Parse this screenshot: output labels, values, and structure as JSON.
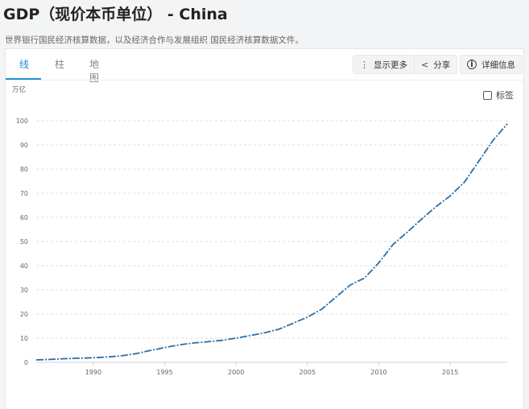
{
  "header": {
    "title": "GDP（现价本币单位） - China",
    "subtitle": "世界银行国民经济核算数据，以及经济合作与发展组织 国民经济核算数据文件。"
  },
  "tabs": [
    {
      "label": "线",
      "active": true
    },
    {
      "label": "柱",
      "active": false
    },
    {
      "label": "地图",
      "active": false
    }
  ],
  "toolbar": {
    "more_label": "显示更多",
    "share_label": "分享",
    "details_label": "详细信息"
  },
  "label_toggle": {
    "label": "标签",
    "checked": false
  },
  "colors": {
    "line": "#2a6fa7",
    "accent": "#1f8fd3"
  },
  "chart_data": {
    "type": "line",
    "title": "",
    "xlabel": "",
    "ylabel": "万亿",
    "xlim": [
      1986,
      2019
    ],
    "ylim": [
      0,
      100
    ],
    "yticks": [
      0,
      10,
      20,
      30,
      40,
      50,
      60,
      70,
      80,
      90,
      100
    ],
    "xticks": [
      1990,
      1995,
      2000,
      2005,
      2010,
      2015
    ],
    "grid": true,
    "series": [
      {
        "x": [
          1986,
          1987,
          1988,
          1989,
          1990,
          1991,
          1992,
          1993,
          1994,
          1995,
          1996,
          1997,
          1998,
          1999,
          2000,
          2001,
          2002,
          2003,
          2004,
          2005,
          2006,
          2007,
          2008,
          2009,
          2010,
          2011,
          2012,
          2013,
          2014,
          2015,
          2016,
          2017,
          2018,
          2019
        ],
        "y": [
          1.0,
          1.2,
          1.5,
          1.7,
          1.9,
          2.2,
          2.7,
          3.6,
          4.9,
          6.1,
          7.2,
          8.0,
          8.5,
          9.1,
          10.0,
          11.1,
          12.2,
          13.7,
          16.2,
          18.7,
          22.0,
          27.0,
          32.0,
          34.9,
          41.2,
          48.8,
          53.9,
          59.3,
          64.4,
          68.9,
          74.6,
          83.2,
          91.9,
          98.7
        ]
      }
    ]
  }
}
